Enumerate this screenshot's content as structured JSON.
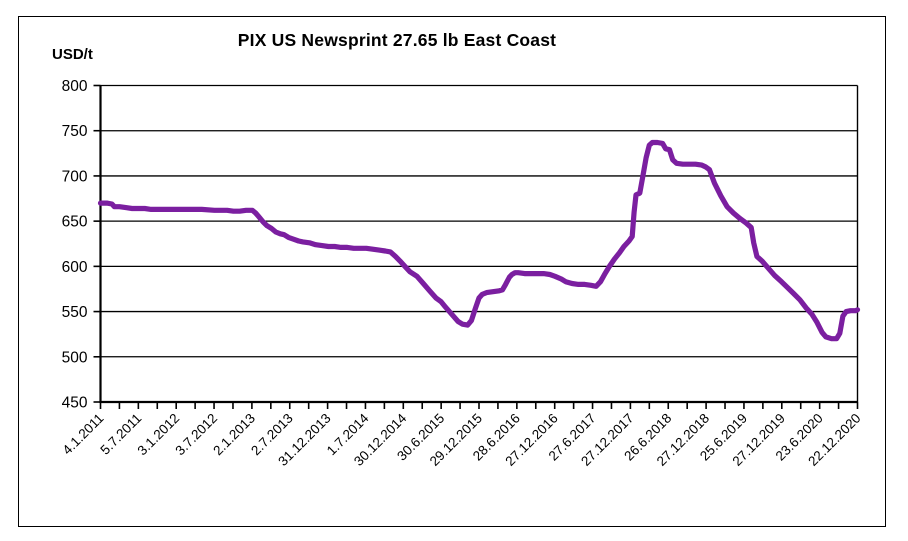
{
  "chart_data": {
    "type": "line",
    "title": "PIX US Newsprint 27.65 lb East Coast",
    "y_axis_label": "USD/t",
    "ylim": [
      450,
      800
    ],
    "y_ticks": [
      800,
      750,
      700,
      650,
      600,
      550,
      500,
      450
    ],
    "grid": "horizontal",
    "legend": "none",
    "x_tick_labels": [
      "4.1.2011",
      "5.7.2011",
      "3.1.2012",
      "3.7.2012",
      "2.1.2013",
      "2.7.2013",
      "31.12.2013",
      "1.7.2014",
      "30.12.2014",
      "30.6.2015",
      "29.12.2015",
      "28.6.2016",
      "27.12.2016",
      "27.6.2017",
      "27.12.2017",
      "26.6.2018",
      "27.12.2018",
      "25.6.2019",
      "27.12.2019",
      "23.6.2020",
      "22.12.2020"
    ],
    "x_unit": "months_since_4.1.2011",
    "x_range_months": [
      0,
      119.6
    ],
    "series": [
      {
        "name": "PIX US Newsprint 27.65 lb East Coast (USD/t)",
        "color": "#7B1FA0",
        "points_month_value": [
          [
            0,
            670
          ],
          [
            1,
            670
          ],
          [
            1.8,
            669
          ],
          [
            2.2,
            666
          ],
          [
            3,
            666
          ],
          [
            4,
            665
          ],
          [
            5,
            664
          ],
          [
            6,
            664
          ],
          [
            7,
            664
          ],
          [
            8,
            663
          ],
          [
            10,
            663
          ],
          [
            12,
            663
          ],
          [
            14,
            663
          ],
          [
            16,
            663
          ],
          [
            18,
            662
          ],
          [
            20,
            662
          ],
          [
            21,
            661
          ],
          [
            22,
            661
          ],
          [
            23,
            662
          ],
          [
            24,
            662
          ],
          [
            24.5,
            659
          ],
          [
            25,
            655
          ],
          [
            25.7,
            649
          ],
          [
            26.3,
            645
          ],
          [
            27,
            642
          ],
          [
            27.7,
            638
          ],
          [
            28.4,
            636
          ],
          [
            29,
            635
          ],
          [
            29.7,
            632
          ],
          [
            30.5,
            630
          ],
          [
            31.3,
            628
          ],
          [
            32,
            627
          ],
          [
            33,
            626
          ],
          [
            34,
            624
          ],
          [
            35,
            623
          ],
          [
            36,
            622
          ],
          [
            37,
            622
          ],
          [
            38,
            621
          ],
          [
            39,
            621
          ],
          [
            40,
            620
          ],
          [
            41,
            620
          ],
          [
            42,
            620
          ],
          [
            43,
            619
          ],
          [
            44,
            618
          ],
          [
            45,
            617
          ],
          [
            45.8,
            616
          ],
          [
            46.6,
            611
          ],
          [
            47.3,
            606
          ],
          [
            48.1,
            600
          ],
          [
            48.9,
            594
          ],
          [
            50,
            589
          ],
          [
            51,
            581
          ],
          [
            52,
            573
          ],
          [
            53,
            565
          ],
          [
            53.8,
            561
          ],
          [
            54.5,
            555
          ],
          [
            55.5,
            547
          ],
          [
            56.5,
            539
          ],
          [
            57.2,
            536
          ],
          [
            58,
            535
          ],
          [
            58.6,
            540
          ],
          [
            59.2,
            553
          ],
          [
            59.8,
            565
          ],
          [
            60.3,
            569
          ],
          [
            61,
            571
          ],
          [
            62,
            572
          ],
          [
            63,
            573
          ],
          [
            63.5,
            574
          ],
          [
            64,
            580
          ],
          [
            64.6,
            588
          ],
          [
            65,
            591
          ],
          [
            65.5,
            593
          ],
          [
            66,
            593
          ],
          [
            67,
            592
          ],
          [
            68,
            592
          ],
          [
            69,
            592
          ],
          [
            70,
            592
          ],
          [
            71,
            591
          ],
          [
            71.8,
            589
          ],
          [
            72.8,
            586
          ],
          [
            73.5,
            583
          ],
          [
            74.5,
            581
          ],
          [
            75.5,
            580
          ],
          [
            76.5,
            580
          ],
          [
            77.5,
            579
          ],
          [
            78.3,
            578
          ],
          [
            79,
            583
          ],
          [
            79.7,
            592
          ],
          [
            80.4,
            600
          ],
          [
            81.2,
            608
          ],
          [
            82,
            615
          ],
          [
            82.7,
            622
          ],
          [
            83.5,
            628
          ],
          [
            84,
            633
          ],
          [
            84.3,
            660
          ],
          [
            84.6,
            679
          ],
          [
            85.2,
            681
          ],
          [
            85.7,
            700
          ],
          [
            86.2,
            720
          ],
          [
            86.7,
            734
          ],
          [
            87.2,
            737
          ],
          [
            88,
            737
          ],
          [
            88.8,
            736
          ],
          [
            89.3,
            730
          ],
          [
            89.9,
            729
          ],
          [
            90.4,
            718
          ],
          [
            91,
            714
          ],
          [
            92,
            713
          ],
          [
            93,
            713
          ],
          [
            94,
            713
          ],
          [
            95,
            712
          ],
          [
            95.6,
            710
          ],
          [
            96.2,
            707
          ],
          [
            97,
            692
          ],
          [
            98,
            678
          ],
          [
            99,
            666
          ],
          [
            100,
            659
          ],
          [
            101,
            653
          ],
          [
            102,
            648
          ],
          [
            102.8,
            643
          ],
          [
            103.2,
            626
          ],
          [
            103.7,
            611
          ],
          [
            104.5,
            606
          ],
          [
            105.5,
            598
          ],
          [
            106.5,
            590
          ],
          [
            107.6,
            583
          ],
          [
            108.5,
            577
          ],
          [
            109.5,
            570
          ],
          [
            110.5,
            563
          ],
          [
            111.5,
            554
          ],
          [
            112.4,
            547
          ],
          [
            113.2,
            538
          ],
          [
            114,
            527
          ],
          [
            114.6,
            522
          ],
          [
            115.5,
            520
          ],
          [
            116.3,
            520
          ],
          [
            116.8,
            526
          ],
          [
            117.3,
            545
          ],
          [
            117.8,
            550
          ],
          [
            118.5,
            551
          ],
          [
            119.3,
            551
          ],
          [
            119.6,
            552
          ]
        ]
      }
    ]
  },
  "style": {
    "axis_color": "#000000",
    "grid_color": "#000000",
    "background": "#ffffff"
  }
}
